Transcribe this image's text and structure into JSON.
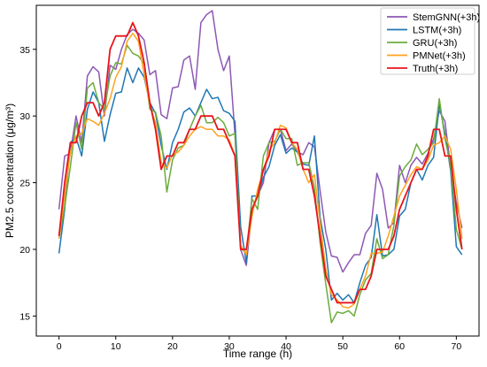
{
  "chart_data": {
    "type": "line",
    "xlabel": "Time range (h)",
    "ylabel": "PM2.5 concentration (μg/m³)",
    "xlim": [
      -4,
      74
    ],
    "ylim": [
      13.5,
      38.3
    ],
    "xticks": [
      0,
      10,
      20,
      30,
      40,
      50,
      60,
      70
    ],
    "yticks": [
      15,
      20,
      25,
      30,
      35
    ],
    "legend_position": "top-right",
    "grid": false,
    "series": [
      {
        "name": "StemGNN(+3h)",
        "color": "#8d58b4",
        "values": [
          23.0,
          27.0,
          27.2,
          30.0,
          28.0,
          33.0,
          33.7,
          33.3,
          30.0,
          33.8,
          33.5,
          35.0,
          36.1,
          36.5,
          36.2,
          35.7,
          33.1,
          33.4,
          30.1,
          29.8,
          32.1,
          32.2,
          34.2,
          34.5,
          32.0,
          37.0,
          37.6,
          37.9,
          35.0,
          33.4,
          34.5,
          28.6,
          20.0,
          18.8,
          23.0,
          24.0,
          25.0,
          28.0,
          29.0,
          29.0,
          27.4,
          27.9,
          27.3,
          27.1,
          28.0,
          27.7,
          24.4,
          21.3,
          19.5,
          19.4,
          18.3,
          19.0,
          19.6,
          19.6,
          21.2,
          21.8,
          25.7,
          24.5,
          21.6,
          22.0,
          26.3,
          25.0,
          26.3,
          26.9,
          26.4,
          27.2,
          28.3,
          30.4,
          29.6,
          26.1,
          23.5,
          21.6
        ]
      },
      {
        "name": "LSTM(+3h)",
        "color": "#1f77b4",
        "values": [
          19.7,
          23.0,
          28.0,
          28.4,
          27.0,
          30.5,
          31.8,
          31.0,
          28.1,
          30.1,
          31.7,
          31.8,
          33.6,
          32.5,
          33.6,
          32.9,
          31.0,
          30.2,
          27.8,
          26.0,
          28.0,
          29.0,
          30.3,
          30.6,
          30.0,
          31.0,
          32.0,
          31.3,
          31.4,
          30.4,
          30.2,
          29.6,
          21.7,
          19.0,
          24.0,
          24.0,
          25.4,
          26.2,
          27.8,
          28.6,
          27.2,
          27.6,
          27.3,
          26.4,
          26.3,
          28.5,
          22.4,
          20.0,
          16.2,
          16.7,
          16.2,
          16.6,
          16.0,
          17.5,
          18.8,
          19.4,
          22.6,
          19.5,
          19.6,
          20.0,
          22.5,
          23.0,
          25.0,
          26.0,
          25.2,
          26.3,
          26.9,
          30.9,
          28.7,
          25.9,
          20.2,
          19.6
        ]
      },
      {
        "name": "GRU(+3h)",
        "color": "#6bac3c",
        "values": [
          20.8,
          23.2,
          26.2,
          29.5,
          27.5,
          32.1,
          32.5,
          31.0,
          30.5,
          33.0,
          34.0,
          33.9,
          35.3,
          34.7,
          34.5,
          33.9,
          30.5,
          30.3,
          28.5,
          24.3,
          26.7,
          27.6,
          27.8,
          29.0,
          30.0,
          30.8,
          29.5,
          29.5,
          29.9,
          29.5,
          28.5,
          28.7,
          20.1,
          19.7,
          23.8,
          23.0,
          27.0,
          28.0,
          28.1,
          29.0,
          28.3,
          28.3,
          26.3,
          26.5,
          26.5,
          24.6,
          20.5,
          17.4,
          14.5,
          15.3,
          15.2,
          15.4,
          15.0,
          16.6,
          17.7,
          18.2,
          20.8,
          19.3,
          19.6,
          21.8,
          25.5,
          26.2,
          26.7,
          27.9,
          27.1,
          27.5,
          28.0,
          31.3,
          28.3,
          26.3,
          21.5,
          20.0
        ]
      },
      {
        "name": "PMNet(+3h)",
        "color": "#ffa21f",
        "values": [
          20.8,
          24.0,
          27.3,
          28.5,
          28.7,
          29.8,
          29.6,
          29.3,
          30.2,
          31.3,
          32.9,
          33.7,
          35.6,
          36.2,
          35.6,
          33.1,
          30.8,
          29.5,
          26.5,
          26.1,
          27.1,
          27.3,
          27.8,
          28.5,
          29.0,
          29.2,
          29.0,
          29.0,
          28.5,
          28.5,
          28.2,
          27.0,
          20.3,
          19.6,
          22.5,
          24.5,
          25.9,
          27.4,
          28.0,
          29.3,
          29.1,
          28.0,
          27.5,
          26.0,
          25.0,
          25.6,
          22.0,
          18.5,
          16.6,
          16.2,
          15.7,
          15.6,
          15.9,
          17.0,
          18.0,
          19.7,
          19.7,
          19.8,
          21.0,
          22.5,
          24.0,
          24.8,
          25.6,
          26.2,
          26.0,
          26.7,
          27.8,
          28.0,
          28.5,
          27.5,
          24.5,
          20.8
        ]
      },
      {
        "name": "Truth(+3h)",
        "color": "#e8141c",
        "values": [
          21.0,
          25.0,
          28.0,
          28.0,
          30.0,
          31.0,
          31.0,
          30.0,
          31.0,
          35.0,
          36.0,
          36.0,
          36.0,
          37.0,
          36.0,
          34.0,
          31.0,
          29.0,
          26.0,
          27.0,
          27.0,
          28.0,
          28.0,
          29.0,
          29.0,
          30.0,
          30.0,
          30.0,
          29.0,
          29.0,
          28.0,
          27.0,
          20.0,
          20.0,
          23.0,
          24.0,
          26.0,
          27.0,
          29.0,
          29.0,
          29.0,
          28.0,
          28.0,
          26.0,
          26.0,
          24.0,
          21.0,
          18.0,
          17.0,
          16.0,
          16.0,
          16.0,
          16.0,
          17.0,
          17.0,
          18.0,
          20.0,
          20.0,
          20.0,
          21.0,
          23.0,
          24.0,
          25.0,
          26.0,
          26.0,
          27.0,
          29.0,
          29.0,
          27.0,
          27.0,
          23.0,
          20.0
        ]
      }
    ]
  }
}
